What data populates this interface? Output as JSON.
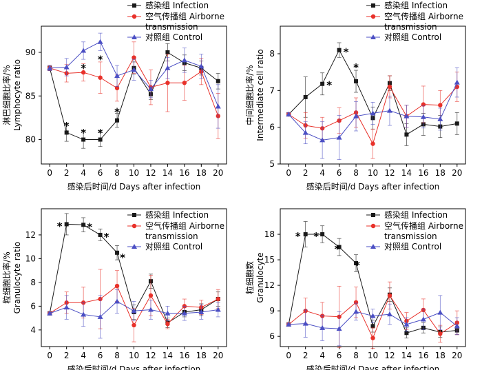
{
  "figure": {
    "legend": {
      "infection": "感染组 Infection",
      "airborne_line1": "空气传播组 Airborne",
      "airborne_line2": "transmission",
      "control": "对照组 Control"
    },
    "xlabel": "感染后时间/d    Days after infection",
    "colors": {
      "infection": "#1a1a1a",
      "airborne": "#e8312a",
      "control": "#4b4fc4"
    }
  },
  "chart_data": [
    {
      "type": "line",
      "ylabel_cn": "淋巴细胞比率/%",
      "ylabel_en": "Lymphocyte ratio",
      "xlabel": "感染后时间/d    Days after infection",
      "x": [
        0,
        2,
        4,
        6,
        8,
        10,
        12,
        14,
        16,
        18,
        20
      ],
      "xlim": [
        -1,
        21
      ],
      "ylim": [
        77.2,
        93
      ],
      "yticks": [
        80,
        85,
        90
      ],
      "series": [
        {
          "name": "感染组 Infection",
          "key": "infection",
          "marker": "square",
          "values": [
            88.2,
            80.8,
            80.0,
            80.0,
            82.2,
            88.2,
            85.2,
            90.0,
            88.8,
            88.2,
            86.7
          ],
          "errors": [
            0.3,
            1.0,
            1.0,
            0.8,
            0.8,
            0.7,
            0.6,
            1.0,
            0.9,
            0.8,
            0.9
          ]
        },
        {
          "name": "空气传播组 Airborne transmission",
          "key": "airborne",
          "marker": "circle",
          "values": [
            88.2,
            87.6,
            87.7,
            87.1,
            85.9,
            89.4,
            86.0,
            86.5,
            86.5,
            87.8,
            82.7
          ],
          "errors": [
            0.3,
            1.0,
            1.0,
            1.8,
            1.5,
            1.8,
            2.0,
            3.3,
            2.0,
            1.5,
            2.6
          ]
        },
        {
          "name": "对照组 Control",
          "key": "control",
          "marker": "triangle",
          "values": [
            88.2,
            88.3,
            90.2,
            91.2,
            87.3,
            88.0,
            85.8,
            88.2,
            89.1,
            88.4,
            83.8
          ],
          "errors": [
            0.3,
            1.0,
            1.0,
            1.0,
            1.2,
            1.2,
            1.0,
            1.2,
            1.4,
            1.4,
            2.5
          ]
        }
      ],
      "annotations": [
        {
          "x": 2,
          "y": 81.8,
          "text": "*"
        },
        {
          "x": 4,
          "y": 81.0,
          "text": "*"
        },
        {
          "x": 6,
          "y": 81.0,
          "text": "*"
        },
        {
          "x": 8,
          "y": 83.4,
          "text": "*"
        },
        {
          "x": 4,
          "y": 88.4,
          "text": "*"
        },
        {
          "x": 6,
          "y": 89.4,
          "text": "*"
        }
      ]
    },
    {
      "type": "line",
      "ylabel_cn": "中间细胞比率/%",
      "ylabel_en": "Intermediate cell ratio",
      "xlabel": "感染后时间/d    Days after infection",
      "x": [
        0,
        2,
        4,
        6,
        8,
        10,
        12,
        14,
        16,
        18,
        20
      ],
      "xlim": [
        -1,
        21
      ],
      "ylim": [
        5,
        8.75
      ],
      "yticks": [
        5,
        6,
        7,
        8
      ],
      "series": [
        {
          "name": "感染组 Infection",
          "key": "infection",
          "marker": "square",
          "values": [
            6.35,
            6.82,
            7.18,
            8.1,
            7.25,
            6.25,
            7.2,
            5.8,
            6.08,
            6.02,
            6.1
          ],
          "errors": [
            0.05,
            0.55,
            0.3,
            0.2,
            0.3,
            0.3,
            0.2,
            0.3,
            0.3,
            0.3,
            0.3
          ]
        },
        {
          "name": "空气传播组 Airborne transmission",
          "key": "airborne",
          "marker": "circle",
          "values": [
            6.35,
            6.05,
            5.97,
            6.18,
            6.4,
            5.55,
            7.1,
            6.3,
            6.62,
            6.6,
            7.1
          ],
          "errors": [
            0.05,
            0.35,
            0.3,
            0.35,
            0.4,
            0.4,
            0.3,
            0.3,
            0.5,
            0.4,
            0.4
          ]
        },
        {
          "name": "对照组 Control",
          "key": "control",
          "marker": "triangle",
          "values": [
            6.35,
            5.85,
            5.65,
            5.72,
            6.3,
            6.38,
            6.45,
            6.3,
            6.28,
            6.22,
            7.22
          ],
          "errors": [
            0.05,
            0.3,
            0.5,
            0.6,
            0.4,
            0.3,
            0.4,
            0.3,
            0.3,
            0.3,
            0.4
          ]
        }
      ],
      "annotations": [
        {
          "x": 4,
          "y": 7.2,
          "text": "*",
          "dx": 10
        },
        {
          "x": 6,
          "y": 8.1,
          "text": "*",
          "dx": 10
        },
        {
          "x": 8,
          "y": 7.68,
          "text": "*"
        }
      ]
    },
    {
      "type": "line",
      "ylabel_cn": "粒细胞比率/%",
      "ylabel_en": "Granulocyte ratio",
      "xlabel": "感染后时间/d    Days after infection",
      "x": [
        0,
        2,
        4,
        6,
        8,
        10,
        12,
        14,
        16,
        18,
        20
      ],
      "xlim": [
        -1,
        21
      ],
      "ylim": [
        2.6,
        14.2
      ],
      "yticks": [
        4,
        6,
        8,
        10,
        12
      ],
      "series": [
        {
          "name": "感染组 Infection",
          "key": "infection",
          "marker": "square",
          "values": [
            5.4,
            12.9,
            12.85,
            12.0,
            10.5,
            5.5,
            8.1,
            4.6,
            5.5,
            5.7,
            6.6
          ],
          "errors": [
            0.1,
            0.9,
            0.6,
            0.5,
            0.6,
            0.6,
            0.6,
            0.4,
            0.4,
            0.5,
            0.6
          ]
        },
        {
          "name": "空气传播组 Airborne transmission",
          "key": "airborne",
          "marker": "circle",
          "values": [
            5.4,
            6.3,
            6.3,
            6.6,
            7.7,
            4.4,
            6.9,
            4.5,
            6.0,
            5.9,
            6.6
          ],
          "errors": [
            0.1,
            0.9,
            1.3,
            2.5,
            1.3,
            1.4,
            1.7,
            0.4,
            0.6,
            0.6,
            0.8
          ]
        },
        {
          "name": "对照组 Control",
          "key": "control",
          "marker": "triangle",
          "values": [
            5.4,
            5.9,
            5.3,
            5.1,
            6.4,
            5.6,
            5.7,
            5.4,
            5.4,
            5.5,
            5.7
          ],
          "errors": [
            0.1,
            1.0,
            1.0,
            1.8,
            1.0,
            0.8,
            0.8,
            0.6,
            0.6,
            0.6,
            0.6
          ]
        }
      ],
      "annotations": [
        {
          "x": 2,
          "y": 12.9,
          "text": "*",
          "dx": -10
        },
        {
          "x": 4,
          "y": 12.85,
          "text": "*",
          "dx": 9
        },
        {
          "x": 6,
          "y": 12.0,
          "text": "*",
          "dx": 9
        },
        {
          "x": 8,
          "y": 10.5,
          "text": "*",
          "dx": 8,
          "dy": 4
        }
      ]
    },
    {
      "type": "line",
      "ylabel_cn": "粒细胞数",
      "ylabel_en": "Granulocyte",
      "xlabel": "感染后时间/d    Days after infection",
      "x": [
        0,
        2,
        4,
        6,
        8,
        10,
        12,
        14,
        16,
        18,
        20
      ],
      "xlim": [
        -1,
        21
      ],
      "ylim": [
        4.8,
        21
      ],
      "yticks": [
        6,
        9,
        12,
        15,
        18
      ],
      "series": [
        {
          "name": "感染组 Infection",
          "key": "infection",
          "marker": "square",
          "values": [
            7.4,
            18.0,
            18.0,
            16.5,
            14.6,
            7.2,
            10.9,
            6.4,
            7.0,
            6.5,
            6.7
          ],
          "errors": [
            0.1,
            1.5,
            1.0,
            1.0,
            1.0,
            0.7,
            0.8,
            0.6,
            0.6,
            0.6,
            0.5
          ]
        },
        {
          "name": "空气传播组 Airborne transmission",
          "key": "airborne",
          "marker": "circle",
          "values": [
            7.4,
            9.0,
            8.4,
            8.3,
            10.0,
            5.8,
            10.8,
            7.8,
            9.1,
            6.3,
            7.6
          ],
          "errors": [
            0.1,
            1.5,
            1.6,
            3.6,
            1.8,
            1.2,
            1.6,
            1.0,
            1.3,
            1.0,
            1.4
          ]
        },
        {
          "name": "对照组 Control",
          "key": "control",
          "marker": "triangle",
          "values": [
            7.4,
            7.5,
            7.0,
            6.9,
            8.9,
            8.4,
            8.6,
            7.4,
            8.0,
            8.8,
            7.2
          ],
          "errors": [
            0.1,
            1.6,
            1.5,
            2.0,
            1.0,
            0.8,
            1.2,
            0.8,
            1.2,
            2.0,
            1.0
          ]
        }
      ],
      "annotations": [
        {
          "x": 2,
          "y": 18.0,
          "text": "*",
          "dx": -11
        },
        {
          "x": 4,
          "y": 18.0,
          "text": "*",
          "dx": -9
        },
        {
          "x": 6,
          "y": 16.5,
          "text": "*",
          "dx": -3
        },
        {
          "x": 8,
          "y": 14.6,
          "text": "*",
          "dx": 2
        }
      ]
    }
  ]
}
